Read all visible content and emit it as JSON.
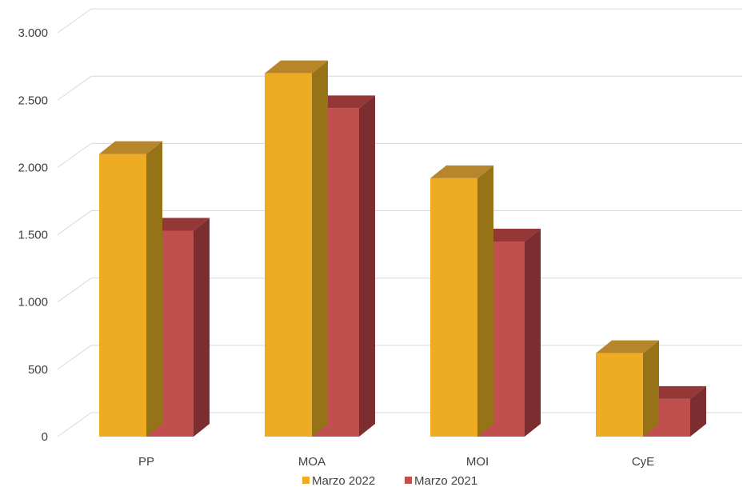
{
  "chart_data": {
    "type": "bar",
    "title": "",
    "xlabel": "",
    "ylabel": "",
    "categories": [
      "PP",
      "MOA",
      "MOI",
      "CyE"
    ],
    "series": [
      {
        "name": "Marzo 2022",
        "values": [
          2100,
          2700,
          1920,
          620
        ],
        "color": "#EDAC24"
      },
      {
        "name": "Marzo 2021",
        "values": [
          1530,
          2440,
          1450,
          280
        ],
        "color": "#C0504D"
      }
    ],
    "ylim": [
      0,
      3000
    ],
    "yticks": [
      {
        "value": 0,
        "label": "0"
      },
      {
        "value": 500,
        "label": "500"
      },
      {
        "value": 1000,
        "label": "1.000"
      },
      {
        "value": 1500,
        "label": "1.500"
      },
      {
        "value": 2000,
        "label": "2.000"
      },
      {
        "value": 2500,
        "label": "2.500"
      },
      {
        "value": 3000,
        "label": "3.000"
      }
    ],
    "grid": true,
    "legend_position": "bottom",
    "style": "3d-clustered-column",
    "colors": {
      "series1_top": "#B8862A",
      "series1_side": "#977318",
      "series2_top": "#953737",
      "series2_side": "#7B2D30",
      "grid": "#D9D9D9",
      "text": "#404040"
    }
  }
}
